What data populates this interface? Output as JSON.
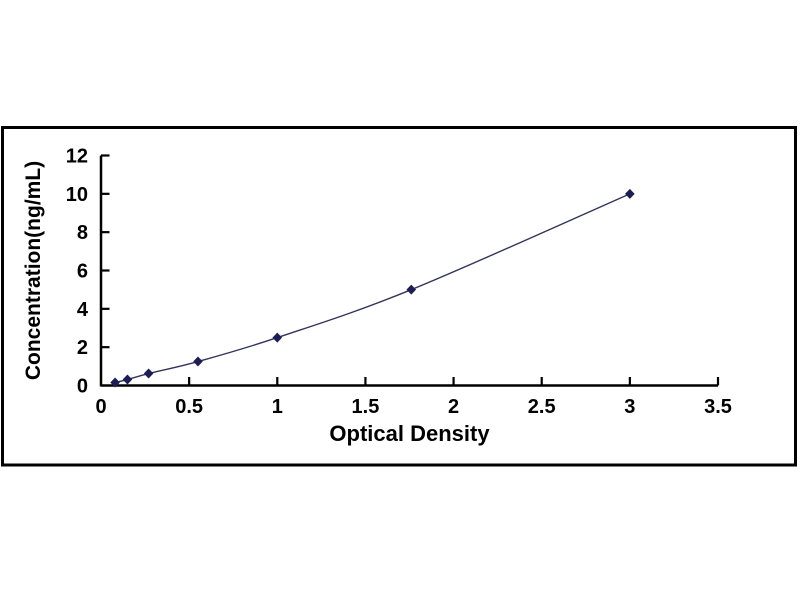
{
  "figure": {
    "background_color": "#ffffff",
    "frame_border_color": "#000000",
    "frame_fill_color": "#ffffff"
  },
  "chart_data": {
    "type": "line",
    "title": "",
    "xlabel": "Optical Density",
    "ylabel": "Concentration(ng/mL)",
    "x": [
      0.08,
      0.15,
      0.27,
      0.55,
      1.0,
      1.76,
      3.0
    ],
    "y": [
      0.156,
      0.312,
      0.625,
      1.25,
      2.5,
      5.0,
      10.0
    ],
    "xlim": [
      0,
      3.5
    ],
    "ylim": [
      0,
      12
    ],
    "x_ticks": [
      0,
      0.5,
      1,
      1.5,
      2,
      2.5,
      3,
      3.5
    ],
    "x_tick_labels": [
      "0",
      "0.5",
      "1",
      "1.5",
      "2",
      "2.5",
      "3",
      "3.5"
    ],
    "y_ticks": [
      0,
      2,
      4,
      6,
      8,
      10,
      12
    ],
    "y_tick_labels": [
      "0",
      "2",
      "4",
      "6",
      "8",
      "10",
      "12"
    ],
    "grid": false,
    "legend": null,
    "line_color": "#34345a",
    "marker_color": "#1d1d55",
    "marker_shape": "diamond",
    "axis_color": "#000000",
    "tick_label_color": "#000000",
    "axis_label_color": "#000000"
  }
}
